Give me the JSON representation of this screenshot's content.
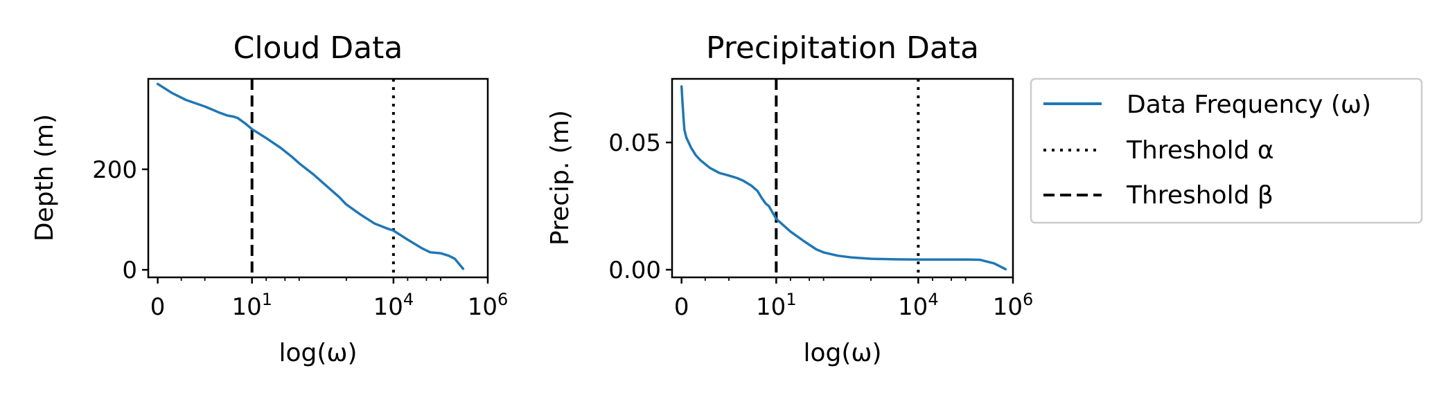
{
  "chart_data": [
    {
      "type": "line",
      "title": "Cloud Data",
      "xlabel": "log(ω)",
      "ylabel": "Depth (m)",
      "xscale": "symlog (linear below 1, log above)",
      "xlim": [
        -0.2,
        1000000
      ],
      "ylim": [
        -15,
        380
      ],
      "xticks": [
        {
          "value": 0,
          "label": "0"
        },
        {
          "value": 10,
          "label": "10",
          "sup": "1"
        },
        {
          "value": 10000,
          "label": "10",
          "sup": "4"
        },
        {
          "value": 1000000,
          "label": "10",
          "sup": "6"
        }
      ],
      "yticks": [
        {
          "value": 0,
          "label": "0"
        },
        {
          "value": 200,
          "label": "200"
        }
      ],
      "series": [
        {
          "name": "Data Frequency (ω)",
          "color": "#1f77b4",
          "x": [
            0,
            0.3,
            0.6,
            1.0,
            1.5,
            2,
            3,
            4,
            5,
            7,
            10,
            20,
            40,
            70,
            100,
            200,
            400,
            700,
            1000,
            2000,
            4000,
            7000,
            10000,
            20000,
            40000,
            60000,
            100000,
            150000,
            200000,
            300000
          ],
          "y": [
            370,
            352,
            338,
            325,
            318,
            313,
            307,
            305,
            302,
            292,
            280,
            262,
            243,
            225,
            212,
            190,
            165,
            145,
            130,
            110,
            92,
            83,
            78,
            60,
            43,
            35,
            33,
            28,
            22,
            2
          ]
        }
      ],
      "thresholds": [
        {
          "name": "Threshold α",
          "x": 10000,
          "style": "dotted",
          "color": "#000000"
        },
        {
          "name": "Threshold β",
          "x": 10,
          "style": "dashed",
          "color": "#000000"
        }
      ]
    },
    {
      "type": "line",
      "title": "Precipitation Data",
      "xlabel": "log(ω)",
      "ylabel": "Precip. (m)",
      "xscale": "symlog (linear below 1, log above)",
      "xlim": [
        -0.2,
        1000000
      ],
      "ylim": [
        -0.003,
        0.075
      ],
      "xticks": [
        {
          "value": 0,
          "label": "0"
        },
        {
          "value": 10,
          "label": "10",
          "sup": "1"
        },
        {
          "value": 10000,
          "label": "10",
          "sup": "4"
        },
        {
          "value": 1000000,
          "label": "10",
          "sup": "6"
        }
      ],
      "yticks": [
        {
          "value": 0,
          "label": "0.00"
        },
        {
          "value": 0.05,
          "label": "0.05"
        }
      ],
      "series": [
        {
          "name": "Data Frequency (ω)",
          "color": "#1f77b4",
          "x": [
            0,
            0.02,
            0.04,
            0.06,
            0.1,
            0.15,
            0.2,
            0.3,
            0.4,
            0.6,
            0.8,
            1.0,
            1.5,
            2,
            3,
            4,
            5,
            6,
            7,
            10,
            20,
            40,
            70,
            100,
            200,
            400,
            1000,
            3000,
            10000,
            30000,
            100000,
            200000,
            400000,
            700000
          ],
          "y": [
            0.072,
            0.066,
            0.06,
            0.055,
            0.052,
            0.05,
            0.048,
            0.045,
            0.043,
            0.04,
            0.038,
            0.037,
            0.036,
            0.035,
            0.033,
            0.031,
            0.028,
            0.026,
            0.025,
            0.02,
            0.015,
            0.011,
            0.008,
            0.0068,
            0.0055,
            0.0048,
            0.0043,
            0.0041,
            0.004,
            0.004,
            0.004,
            0.0039,
            0.0025,
            0.0002
          ]
        }
      ],
      "thresholds": [
        {
          "name": "Threshold α",
          "x": 10000,
          "style": "dotted",
          "color": "#000000"
        },
        {
          "name": "Threshold β",
          "x": 10,
          "style": "dashed",
          "color": "#000000"
        }
      ]
    }
  ],
  "legend": {
    "position": "right of second chart, top",
    "entries": [
      {
        "label": "Data Frequency (ω)",
        "style": "solid",
        "color": "#1f77b4"
      },
      {
        "label": "Threshold α",
        "style": "dotted",
        "color": "#000000"
      },
      {
        "label": "Threshold β",
        "style": "dashed",
        "color": "#000000"
      }
    ]
  }
}
